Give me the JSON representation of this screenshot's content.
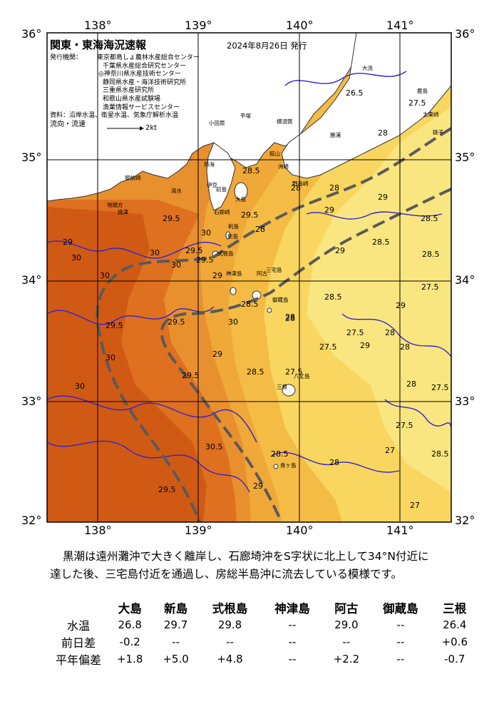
{
  "map": {
    "title": "関東・東海海況速報",
    "issue_date": "2024年8月26日 発行",
    "issuers_label": "発行機関：",
    "issuers": [
      "東京都島しょ農林水産総合センター",
      "千葉県水産総合研究センター",
      "◎神奈川県水産技術センター",
      "静岡県水産・海洋技術研究所",
      "三重県水産研究所",
      "和歌山県水産試験場",
      "漁業情報サービスセンター"
    ],
    "sources_label": "資料：",
    "sources": "沿岸水温、衛星水温、気象庁解析水温",
    "flow_label": "流向・流速",
    "flow_scale": "2kt",
    "lon_ticks": [
      "138°",
      "139°",
      "140°",
      "141°"
    ],
    "lat_ticks": [
      "36°",
      "35°",
      "34°",
      "33°",
      "32°"
    ],
    "contour_labels": [
      "26.5",
      "27.5",
      "28",
      "28.5",
      "28",
      "28",
      "29",
      "29",
      "28.5",
      "29",
      "29.5",
      "30",
      "29.5",
      "29",
      "30",
      "30",
      "30",
      "29.5",
      "30",
      "29",
      "28.5",
      "28",
      "28.5",
      "29",
      "29.5",
      "29.5",
      "30",
      "30",
      "29.5",
      "30",
      "30.5",
      "29.5",
      "29",
      "28.5",
      "28",
      "28.5",
      "29",
      "27.5",
      "27.5",
      "28",
      "27.5",
      "28",
      "28",
      "27.5",
      "27.5",
      "27",
      "27",
      "28.5",
      "28",
      "28",
      "27.5",
      "29",
      "28.5",
      "28.5",
      "29.5"
    ],
    "place_labels": [
      "大洗",
      "鹿島",
      "銚子",
      "太東崎",
      "勝浦",
      "横須賀",
      "平塚",
      "小田原",
      "熱海",
      "伊豆",
      "初島",
      "石廊崎",
      "御前崎",
      "地頭方",
      "焼津",
      "清水",
      "新島",
      "式根島",
      "三宅島",
      "神津島",
      "御蔵島",
      "八丈島",
      "青ヶ島",
      "大島",
      "野島崎",
      "洲崎",
      "三根",
      "阿古",
      "利島",
      "館山"
    ]
  },
  "description": [
    "黒潮は遠州灘沖で大きく離岸し、石廊埼沖をS字状に北上して34°N付近に",
    "達した後、三宅島付近を通過し、房総半島沖に流去している模様です。"
  ],
  "table": {
    "columns": [
      "大島",
      "新島",
      "式根島",
      "神津島",
      "阿古",
      "御蔵島",
      "三根"
    ],
    "rows": [
      {
        "label": "水温",
        "values": [
          "26.8",
          "29.7",
          "29.8",
          "--",
          "29.0",
          "--",
          "26.4"
        ]
      },
      {
        "label": "前日差",
        "values": [
          "-0.2",
          "--",
          "--",
          "--",
          "--",
          "--",
          "+0.6"
        ]
      },
      {
        "label": "平年偏差",
        "values": [
          "+1.8",
          "+5.0",
          "+4.8",
          "--",
          "+2.2",
          "--",
          "-0.7"
        ]
      }
    ]
  },
  "colors": {
    "sst_30": "#d05a14",
    "sst_29_5": "#de7020",
    "sst_29": "#e9902e",
    "sst_28_5": "#f0a838",
    "sst_28": "#f4bc44",
    "sst_27_5": "#f8d660",
    "sst_27": "#fae680",
    "land": "#ffffff",
    "contour": "#3322cc",
    "kuroshio": "#5a5a5a"
  }
}
